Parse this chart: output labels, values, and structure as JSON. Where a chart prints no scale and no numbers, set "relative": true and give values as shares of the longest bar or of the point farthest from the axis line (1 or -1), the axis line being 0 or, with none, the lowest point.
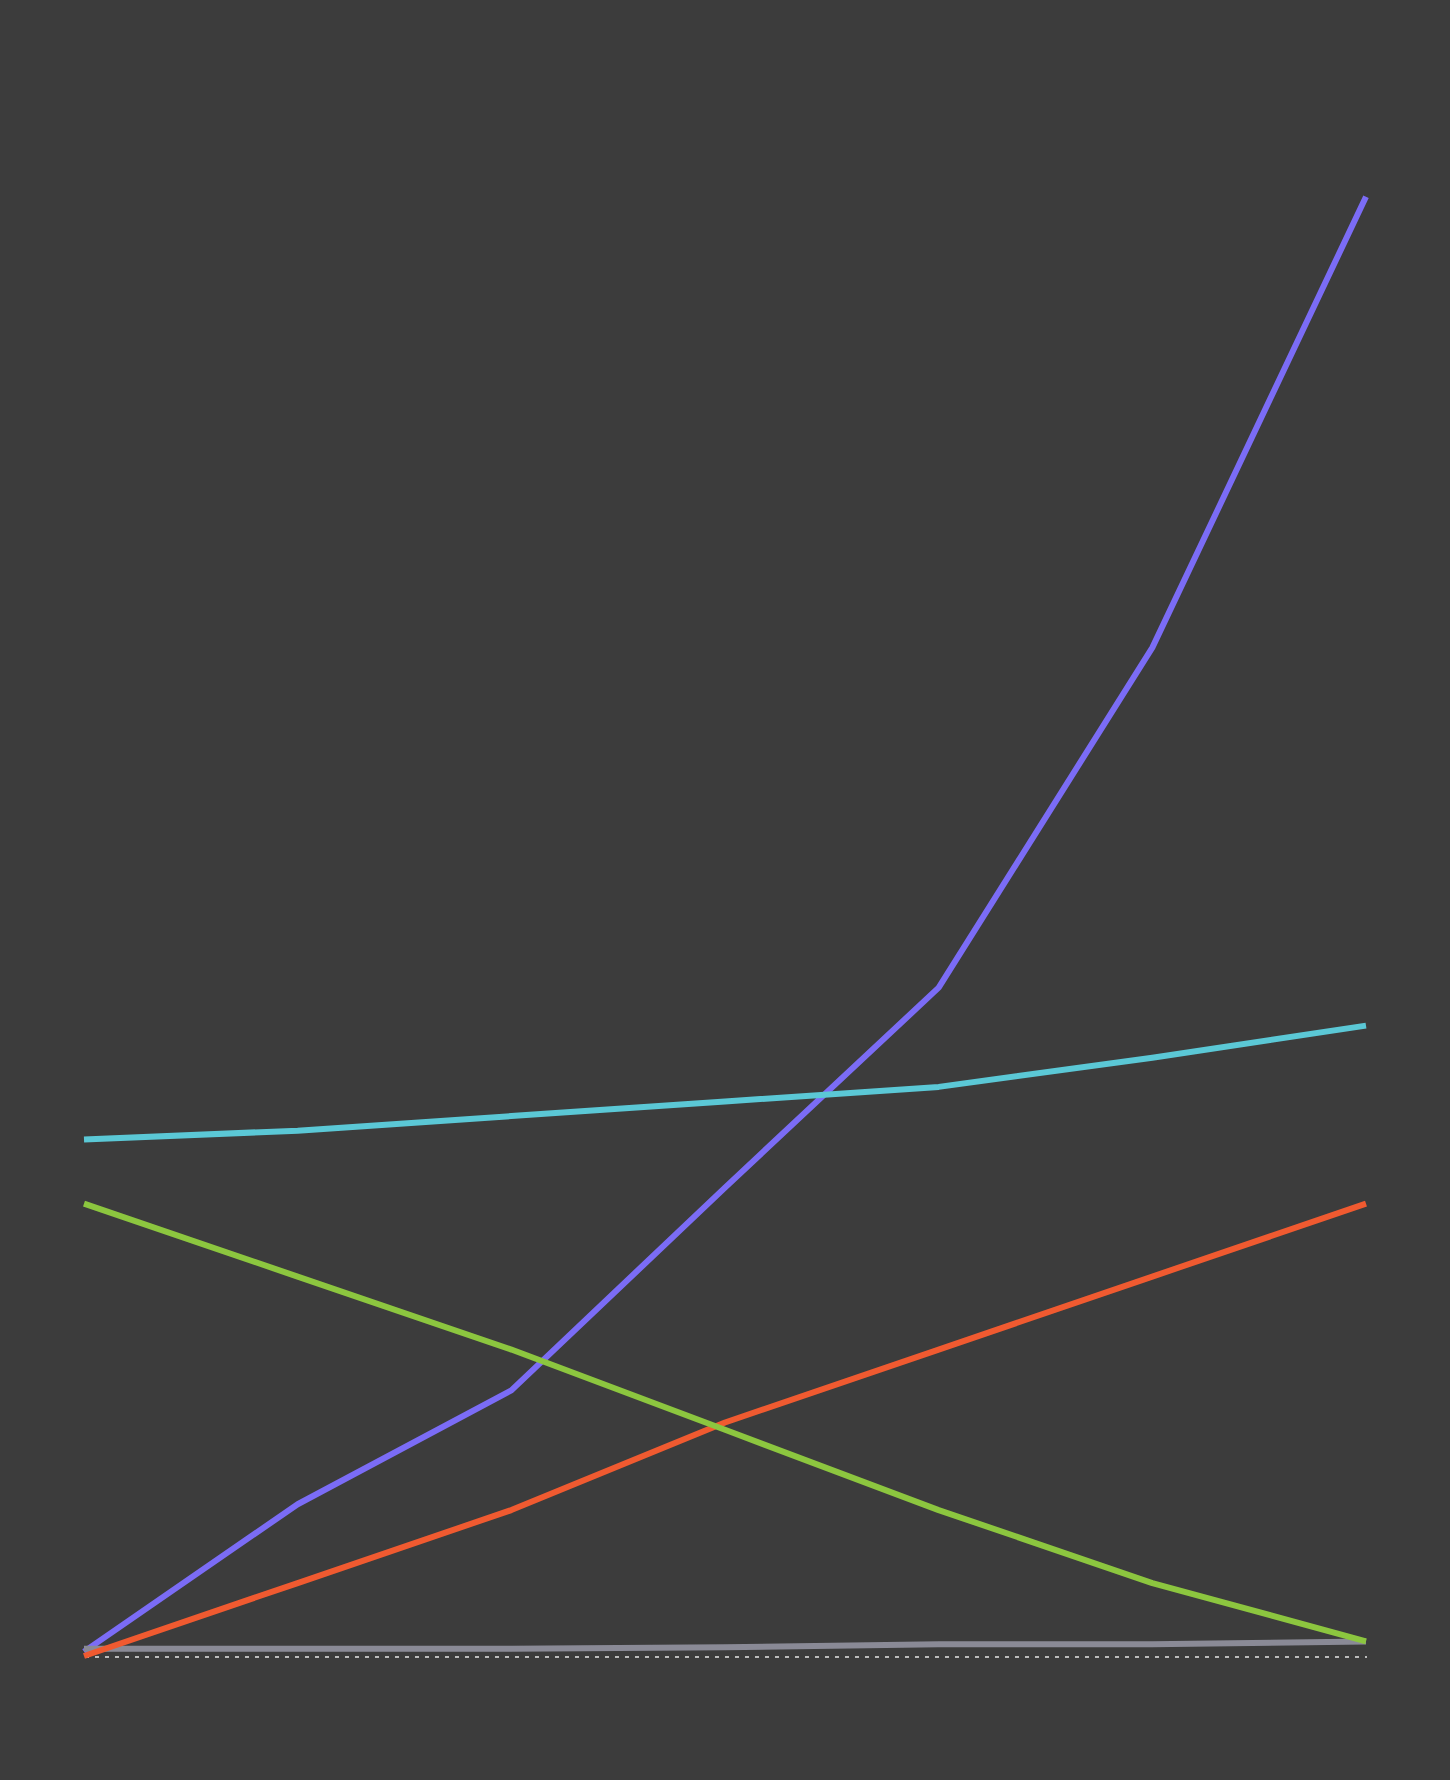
{
  "chart_data": {
    "type": "line",
    "relative": true,
    "categories": [
      null,
      null,
      null,
      null,
      null,
      null,
      null
    ],
    "series": [
      {
        "color": "#7b6cf6",
        "values": [
          0.003,
          0.104,
          0.182,
          0.321,
          0.458,
          0.691,
          1
        ]
      },
      {
        "color": "#8a8a96",
        "values": [
          0.005,
          0.005,
          0.005,
          0.006,
          0.008,
          0.008,
          0.01
        ]
      },
      {
        "color": "#f05a30",
        "values": [
          0.0,
          0.05,
          0.1,
          0.16,
          0.21,
          0.26,
          0.31
        ]
      },
      {
        "color": "#8cc63f",
        "values": [
          0.31,
          0.26,
          0.21,
          0.155,
          0.1,
          0.05,
          0.01
        ]
      },
      {
        "color": "#5bc8d6",
        "values": [
          0.354,
          0.36,
          0.37,
          0.38,
          0.39,
          0.41,
          0.432
        ]
      }
    ]
  }
}
